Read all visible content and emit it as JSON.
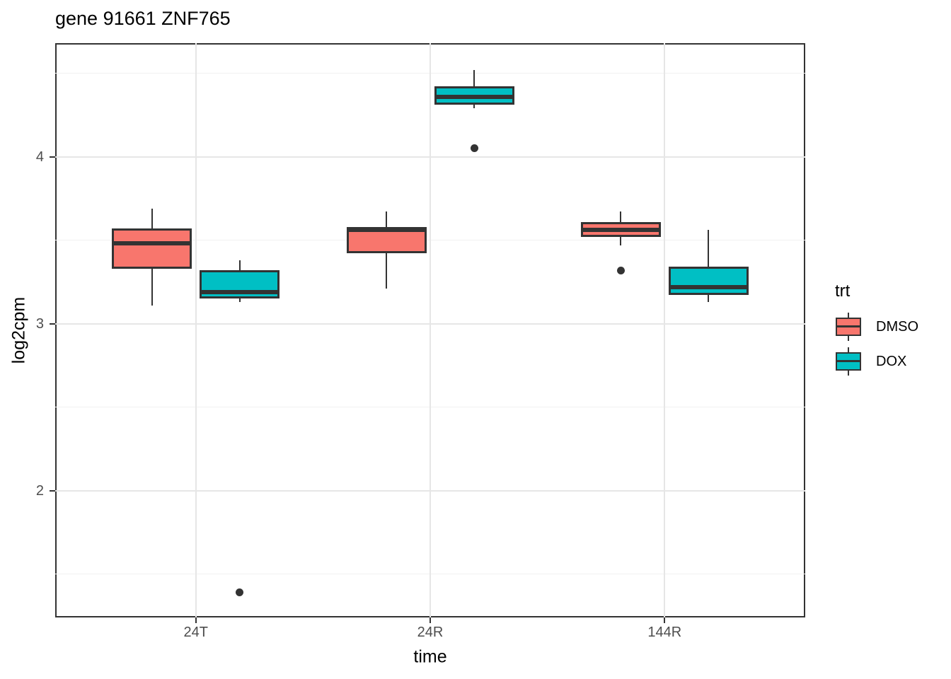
{
  "header": {
    "title": "gene 91661 ZNF765"
  },
  "axes": {
    "x_label": "time",
    "y_label": "log2cpm",
    "x_tick_labels": [
      "24T",
      "24R",
      "144R"
    ],
    "y_tick_labels": [
      "2",
      "3",
      "4"
    ]
  },
  "legend": {
    "title": "trt",
    "entries": [
      {
        "label": "DMSO",
        "color": "#F8766D"
      },
      {
        "label": "DOX",
        "color": "#00BFC4"
      }
    ]
  },
  "colors": {
    "box_border": "#333333",
    "median": "#333333",
    "outlier": "#333333",
    "panel_border": "#333333",
    "grid_major": "#e6e6e6",
    "grid_minor": "#f2f2f2",
    "tick_label": "#4d4d4d",
    "dmso_fill": "#F8766D",
    "dox_fill": "#00BFC4"
  },
  "chart_data": {
    "type": "boxplot",
    "title": "gene 91661 ZNF765",
    "xlabel": "time",
    "ylabel": "log2cpm",
    "categories": [
      "24T",
      "24R",
      "144R"
    ],
    "y_ticks": [
      2,
      3,
      4
    ],
    "y_minor_ticks": [
      1.5,
      2.5,
      3.5,
      4.5
    ],
    "ylim": [
      1.24,
      4.68
    ],
    "grid": true,
    "legend_title": "trt",
    "legend_position": "right",
    "series": [
      {
        "name": "DMSO",
        "color": "#F8766D",
        "boxes": [
          {
            "category": "24T",
            "whisker_low": 3.11,
            "q1": 3.33,
            "median": 3.48,
            "q3": 3.57,
            "whisker_high": 3.69,
            "outliers": []
          },
          {
            "category": "24R",
            "whisker_low": 3.21,
            "q1": 3.42,
            "median": 3.56,
            "q3": 3.58,
            "whisker_high": 3.67,
            "outliers": []
          },
          {
            "category": "144R",
            "whisker_low": 3.47,
            "q1": 3.52,
            "median": 3.56,
            "q3": 3.61,
            "whisker_high": 3.67,
            "outliers": [
              3.32
            ]
          }
        ]
      },
      {
        "name": "DOX",
        "color": "#00BFC4",
        "boxes": [
          {
            "category": "24T",
            "whisker_low": 3.13,
            "q1": 3.15,
            "median": 3.19,
            "q3": 3.32,
            "whisker_high": 3.38,
            "outliers": [
              1.39
            ]
          },
          {
            "category": "24R",
            "whisker_low": 4.29,
            "q1": 4.31,
            "median": 4.36,
            "q3": 4.42,
            "whisker_high": 4.52,
            "outliers": [
              4.05
            ]
          },
          {
            "category": "144R",
            "whisker_low": 3.13,
            "q1": 3.17,
            "median": 3.22,
            "q3": 3.34,
            "whisker_high": 3.56,
            "outliers": []
          }
        ]
      }
    ]
  }
}
